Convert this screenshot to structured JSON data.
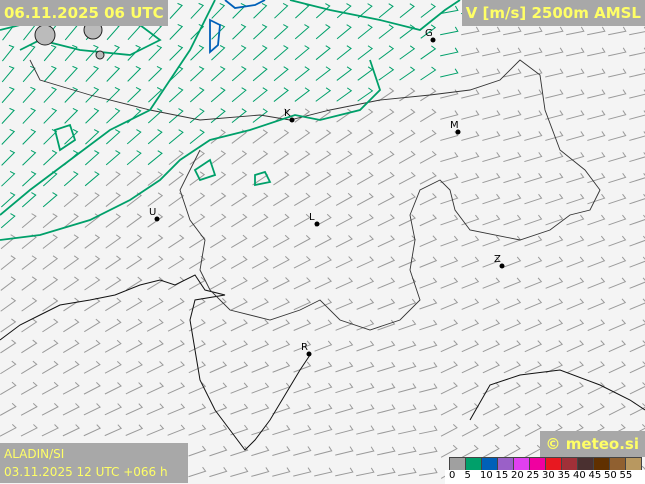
{
  "header": {
    "valid_time": "06.11.2025 06 UTC",
    "parameter": "V [m/s] 2500m AMSL"
  },
  "footer": {
    "model": "ALADIN/SI",
    "run": "03.11.2025 12 UTC +066 h",
    "credit": "© meteo.si"
  },
  "map": {
    "background": "#f4f4f4",
    "barb_color": "#9a9a9a",
    "contour_colors": [
      "#00a06a",
      "#0060b8"
    ],
    "cities": [
      {
        "label": "G"
      },
      {
        "label": "K"
      },
      {
        "label": "M"
      },
      {
        "label": "U"
      },
      {
        "label": "L"
      },
      {
        "label": "Z"
      },
      {
        "label": "R"
      }
    ]
  },
  "legend": {
    "colors": [
      "#a0a0a0",
      "#00a06a",
      "#0060b8",
      "#9a60c8",
      "#e040f0",
      "#f000a0",
      "#e81820",
      "#a03038",
      "#4a3030",
      "#603000",
      "#906030",
      "#b89860"
    ],
    "labels": [
      "0",
      "5",
      "10",
      "15",
      "20",
      "25",
      "30",
      "35",
      "40",
      "45",
      "50",
      "55"
    ]
  }
}
